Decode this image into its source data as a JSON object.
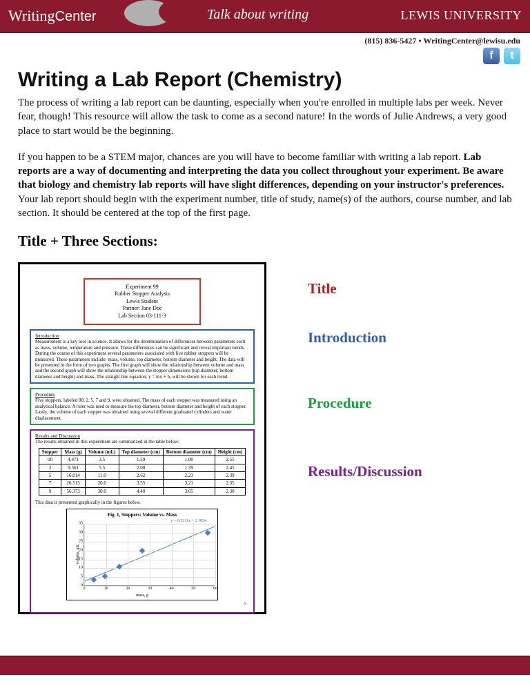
{
  "header": {
    "logo_word1": "Writing",
    "logo_word2": "Center",
    "tagline": "Talk about writing",
    "university": "LEWIS UNIVERSITY",
    "contact": "(815) 836-5427 • WritingCenter@lewisu.edu"
  },
  "title": "Writing a Lab Report (Chemistry)",
  "para1": "The process of writing a lab report can be daunting, especially when you're enrolled in multiple labs per week. Never fear, though! This resource will allow the task to come as a second nature! In the words of Julie Andrews, a very good place to start would be the beginning.",
  "para2_a": "If you happen to be a STEM major, chances are you will have to become familiar with writing a lab report. ",
  "para2_b": "Lab reports are a way of documenting and interpreting the data you collect throughout your experiment. Be aware that biology and chemistry lab reports will have slight differences, depending on your instructor's preferences.",
  "para2_c": " Your lab report should begin with the experiment number, title of study, name(s) of the authors, course number, and lab section. It should be centered at the top of the first page.",
  "section_head": "Title + Three Sections:",
  "sample": {
    "title_lines": [
      "Experiment 99",
      "Rubber Stopper Analysis",
      "Lewis Student",
      "Partner: Jane Doe",
      "Lab Section 03-111-3"
    ],
    "intro_head": "Introduction",
    "intro_text": "Measurement is a key tool in science. It allows for the determination of differences between parameters such as mass, volume, temperature and pressure. These differences can be significant and reveal important trends. During the course of this experiment several parameters associated with five rubber stoppers will be measured. These parameters include: mass, volume, top diameter, bottom diameter and height. The data will be presented in the form of two graphs. The first graph will show the relationship between volume and mass and the second graph will show the relationship between the stopper dimensions (top diameter, bottom diameter and height) and mass. The straight line equation, y = mx + b, will be shown for each trend.",
    "proc_head": "Procedure",
    "proc_text": "Five stoppers, labeled 00, 2, 5, 7 and 9, were obtained. The mass of each stopper was measured using an analytical balance. A ruler was used to measure the top diameter, bottom diameter and height of each stopper. Lastly, the volume of each stopper was obtained using several different graduated cylinders and water displacement.",
    "results_head": "Results and Discussion",
    "results_intro": "The results obtained in this experiment are summarized in the table below:",
    "table": {
      "columns": [
        "Stopper",
        "Mass (g)",
        "Volume (mL)",
        "Top diameter (cm)",
        "Bottom diameter (cm)",
        "Height (cm)"
      ],
      "rows": [
        [
          "00",
          "4.471",
          "3.5",
          "1.59",
          "1.00",
          "2.55"
        ],
        [
          "2",
          "9.561",
          "5.5",
          "2.00",
          "1.39",
          "2.45"
        ],
        [
          "5",
          "16.014",
          "11.0",
          "2.62",
          "2.23",
          "2.39"
        ],
        [
          "7",
          "26.515",
          "20.0",
          "3.55",
          "3.21",
          "2.35"
        ],
        [
          "9",
          "56.373",
          "30.0",
          "4.40",
          "3.65",
          "2.30"
        ]
      ]
    },
    "results_graphnote": "This data is presented graphically in the figures below.",
    "chart": {
      "title": "Fig. 1, Stoppers: Volume vs. Mass",
      "equation": "y = 0.5211x + 2.1854",
      "x_label": "mass, g",
      "y_label": "volume, mL",
      "xmax": 60,
      "ymax": 35,
      "xticks": [
        0,
        10,
        20,
        30,
        40,
        50,
        60
      ],
      "yticks": [
        0,
        5,
        10,
        15,
        20,
        25,
        30,
        35
      ],
      "points": [
        {
          "x": 4.471,
          "y": 3.5
        },
        {
          "x": 9.561,
          "y": 5.5
        },
        {
          "x": 16.014,
          "y": 11.0
        },
        {
          "x": 26.515,
          "y": 20.0
        },
        {
          "x": 56.373,
          "y": 30.0
        }
      ],
      "trend": {
        "slope": 0.5211,
        "intercept": 2.1854,
        "color": "#4a7fc0"
      }
    },
    "footer_v": "v"
  },
  "labels": {
    "title": {
      "text": "Title",
      "color": "#b81e24"
    },
    "intro": {
      "text": "Introduction",
      "color": "#2e5fb0"
    },
    "proc": {
      "text": "Procedure",
      "color": "#1e9e3e"
    },
    "results": {
      "text": "Results/Discussion",
      "color": "#7e1f8e"
    }
  }
}
